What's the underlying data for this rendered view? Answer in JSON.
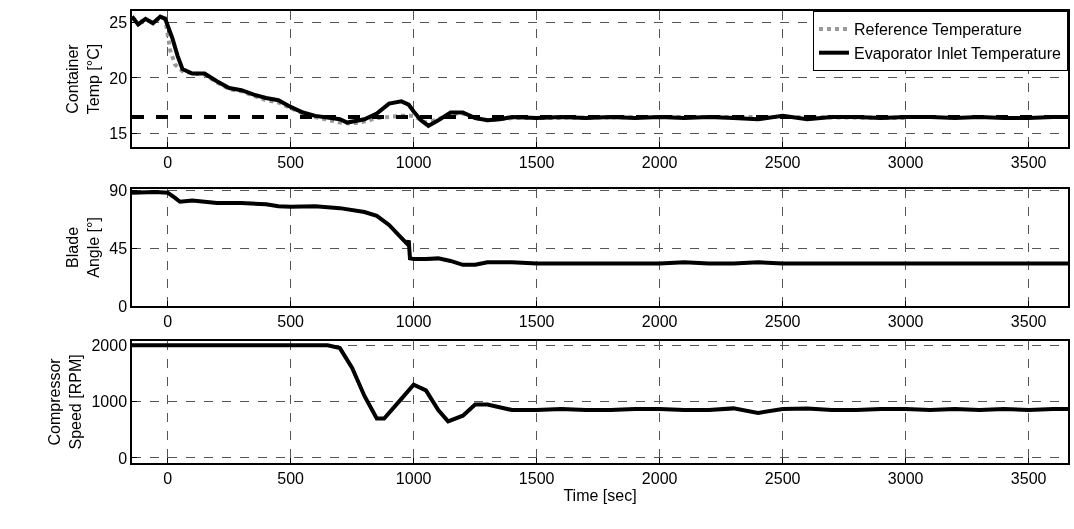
{
  "chart_data": [
    {
      "type": "line",
      "ylabel": "Container\nTemp [°C]",
      "xlim": [
        -145,
        3660
      ],
      "xticks": [
        0,
        500,
        1000,
        1500,
        2000,
        2500,
        3000,
        3500
      ],
      "ylim": [
        13.8,
        26
      ],
      "yticks": [
        15,
        20,
        25
      ],
      "grid": true,
      "legend": "top right",
      "series": [
        {
          "name": "Reference Temperature",
          "color": "#999999",
          "line_style": "dotted",
          "x": [
            -145,
            -100,
            -50,
            -10,
            10,
            30,
            60,
            100,
            150,
            200,
            250,
            300,
            350,
            400,
            450,
            500,
            550,
            600,
            700,
            750,
            800,
            850,
            900,
            950,
            1000,
            1050,
            1100,
            1150,
            1200,
            1250,
            1300,
            1400,
            1500,
            2000,
            2500,
            3000
          ],
          "values": [
            25.3,
            25.0,
            25.2,
            25.3,
            22.5,
            21.2,
            20.6,
            20.4,
            20.3,
            19.6,
            19.0,
            18.8,
            18.4,
            18.0,
            17.8,
            17.3,
            16.8,
            16.5,
            16.0,
            15.9,
            16.1,
            16.4,
            16.5,
            16.6,
            16.6,
            16.0,
            16.3,
            16.8,
            16.8,
            16.4,
            16.2,
            16.4,
            16.4,
            16.5,
            16.5,
            16.4
          ]
        },
        {
          "name": "Evaporator Inlet Temperature",
          "color": "#000000",
          "line_style": "solid",
          "x": [
            -145,
            -120,
            -90,
            -60,
            -30,
            -10,
            20,
            40,
            60,
            100,
            150,
            200,
            250,
            300,
            350,
            400,
            450,
            500,
            550,
            600,
            700,
            730,
            800,
            850,
            900,
            950,
            980,
            1000,
            1030,
            1060,
            1100,
            1150,
            1200,
            1250,
            1300,
            1350,
            1400,
            1500,
            1600,
            1700,
            1800,
            1900,
            2000,
            2100,
            2200,
            2300,
            2400,
            2500,
            2600,
            2700,
            2800,
            2900,
            3000,
            3100,
            3200,
            3300,
            3400,
            3500,
            3600,
            3660
          ],
          "values": [
            25.5,
            24.8,
            25.3,
            24.9,
            25.5,
            25.3,
            23.5,
            22.0,
            20.8,
            20.4,
            20.4,
            19.7,
            19.1,
            18.9,
            18.5,
            18.2,
            18.0,
            17.4,
            16.9,
            16.6,
            16.3,
            16.0,
            16.3,
            16.8,
            17.7,
            17.9,
            17.6,
            17.0,
            16.2,
            15.7,
            16.2,
            16.9,
            16.9,
            16.4,
            16.2,
            16.3,
            16.5,
            16.4,
            16.5,
            16.4,
            16.5,
            16.4,
            16.5,
            16.4,
            16.5,
            16.4,
            16.3,
            16.6,
            16.3,
            16.5,
            16.5,
            16.4,
            16.5,
            16.5,
            16.4,
            16.5,
            16.4,
            16.4,
            16.5,
            16.5
          ]
        }
      ],
      "ref_lines": [
        {
          "axis": "y",
          "value": 16.5,
          "color": "#000000",
          "line_style": "dashed"
        }
      ]
    },
    {
      "type": "line",
      "ylabel": "Blade\nAngle [°]",
      "xlim": [
        -145,
        3660
      ],
      "xticks": [
        0,
        500,
        1000,
        1500,
        2000,
        2500,
        3000,
        3500
      ],
      "ylim": [
        0,
        91
      ],
      "yticks": [
        0,
        45,
        90
      ],
      "grid": true,
      "series": [
        {
          "color": "#000000",
          "line_style": "solid",
          "x": [
            -145,
            -50,
            0,
            30,
            50,
            100,
            150,
            200,
            300,
            400,
            450,
            500,
            600,
            700,
            800,
            850,
            900,
            950,
            975,
            980,
            985,
            1000,
            1050,
            1100,
            1150,
            1200,
            1250,
            1300,
            1400,
            1500,
            1600,
            1700,
            1800,
            1900,
            2000,
            2100,
            2200,
            2300,
            2400,
            2500,
            2600,
            2700,
            2800,
            2900,
            3000,
            3100,
            3200,
            3300,
            3400,
            3500,
            3600,
            3660
          ],
          "values": [
            88,
            88.5,
            88,
            84,
            81,
            82,
            81,
            80,
            80,
            79,
            77.5,
            77,
            77.5,
            76,
            73,
            70,
            63,
            53,
            48,
            51,
            37,
            36.5,
            36.5,
            37,
            35,
            32,
            32,
            34,
            34,
            33,
            33,
            33,
            33,
            33,
            33,
            34,
            33,
            33,
            34,
            33,
            33,
            33,
            33,
            33,
            33,
            33,
            33,
            33,
            33,
            33,
            33,
            33
          ]
        }
      ]
    },
    {
      "type": "line",
      "ylabel": "Compressor\nSpeed [RPM]",
      "xlabel": "Time [sec]",
      "xlim": [
        -145,
        3660
      ],
      "xticks": [
        0,
        500,
        1000,
        1500,
        2000,
        2500,
        3000,
        3500
      ],
      "ylim": [
        -90,
        2080
      ],
      "yticks": [
        0,
        1000,
        2000
      ],
      "grid": true,
      "series": [
        {
          "color": "#000000",
          "line_style": "solid",
          "x": [
            -145,
            650,
            700,
            750,
            800,
            850,
            880,
            950,
            1000,
            1050,
            1100,
            1140,
            1200,
            1250,
            1300,
            1400,
            1500,
            1600,
            1700,
            1800,
            1900,
            2000,
            2100,
            2200,
            2300,
            2400,
            2500,
            2600,
            2700,
            2800,
            2900,
            3000,
            3100,
            3200,
            3300,
            3400,
            3500,
            3600,
            3660
          ],
          "values": [
            2000,
            2000,
            1950,
            1600,
            1100,
            700,
            700,
            1050,
            1300,
            1200,
            850,
            650,
            750,
            950,
            950,
            850,
            850,
            870,
            850,
            850,
            870,
            870,
            850,
            850,
            880,
            800,
            870,
            880,
            850,
            850,
            870,
            870,
            850,
            870,
            850,
            870,
            850,
            870,
            870
          ]
        }
      ]
    }
  ]
}
